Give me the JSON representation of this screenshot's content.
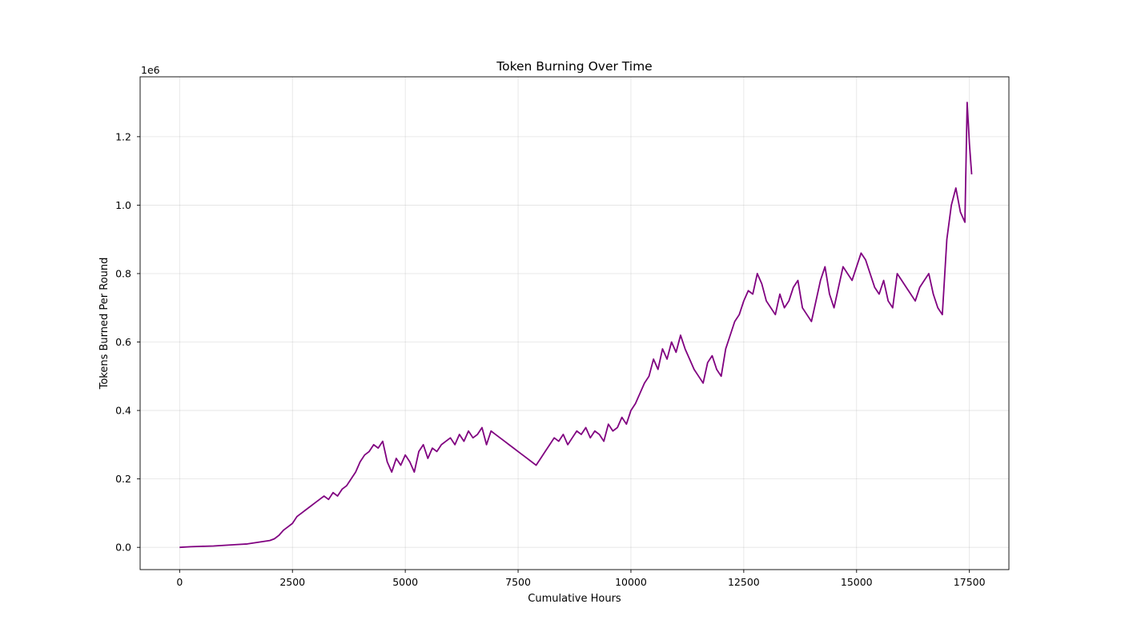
{
  "chart_data": {
    "type": "line",
    "title": "Token Burning Over Time",
    "xlabel": "Cumulative Hours",
    "ylabel": "Tokens Burned Per Round",
    "y_offset_label": "1e6",
    "xlim": [
      -875,
      18375
    ],
    "ylim": [
      -0.065,
      1.375
    ],
    "x_ticks": [
      0,
      2500,
      5000,
      7500,
      10000,
      12500,
      15000,
      17500
    ],
    "x_tick_labels": [
      "0",
      "2500",
      "5000",
      "7500",
      "10000",
      "12500",
      "15000",
      "17500"
    ],
    "y_ticks": [
      0.0,
      0.2,
      0.4,
      0.6,
      0.8,
      1.0,
      1.2
    ],
    "y_tick_labels": [
      "0.0",
      "0.2",
      "0.4",
      "0.6",
      "0.8",
      "1.0",
      "1.2"
    ],
    "grid": true,
    "color": "#800080",
    "series": [
      {
        "x": [
          0,
          250,
          500,
          750,
          1000,
          1250,
          1500,
          1750,
          2000,
          2100,
          2200,
          2300,
          2400,
          2500,
          2600,
          2700,
          2800,
          2900,
          3000,
          3100,
          3200,
          3300,
          3400,
          3500,
          3600,
          3700,
          3800,
          3900,
          4000,
          4100,
          4200,
          4300,
          4400,
          4500,
          4600,
          4700,
          4800,
          4900,
          5000,
          5100,
          5200,
          5300,
          5400,
          5500,
          5600,
          5700,
          5800,
          5900,
          6000,
          6100,
          6200,
          6300,
          6400,
          6500,
          6600,
          6700,
          6800,
          6900,
          7000,
          7100,
          7200,
          7300,
          7400,
          7500,
          7600,
          7700,
          7800,
          7900,
          8000,
          8100,
          8200,
          8300,
          8400,
          8500,
          8600,
          8700,
          8800,
          8900,
          9000,
          9100,
          9200,
          9300,
          9400,
          9500,
          9600,
          9700,
          9800,
          9900,
          10000,
          10100,
          10200,
          10300,
          10400,
          10500,
          10600,
          10700,
          10800,
          10900,
          11000,
          11100,
          11200,
          11300,
          11400,
          11500,
          11600,
          11700,
          11800,
          11900,
          12000,
          12100,
          12200,
          12300,
          12400,
          12500,
          12600,
          12700,
          12800,
          12900,
          13000,
          13100,
          13200,
          13300,
          13400,
          13500,
          13600,
          13700,
          13800,
          13900,
          14000,
          14100,
          14200,
          14300,
          14400,
          14500,
          14600,
          14700,
          14800,
          14900,
          15000,
          15100,
          15200,
          15300,
          15400,
          15500,
          15600,
          15700,
          15800,
          15900,
          16000,
          16100,
          16200,
          16300,
          16400,
          16500,
          16600,
          16700,
          16800,
          16900,
          17000,
          17100,
          17200,
          17300,
          17400,
          17450,
          17500,
          17550
        ],
        "y": [
          0.0,
          0.002,
          0.003,
          0.004,
          0.006,
          0.008,
          0.01,
          0.015,
          0.02,
          0.025,
          0.035,
          0.05,
          0.06,
          0.07,
          0.09,
          0.1,
          0.11,
          0.12,
          0.13,
          0.14,
          0.15,
          0.14,
          0.16,
          0.15,
          0.17,
          0.18,
          0.2,
          0.22,
          0.25,
          0.27,
          0.28,
          0.3,
          0.29,
          0.31,
          0.25,
          0.22,
          0.26,
          0.24,
          0.27,
          0.25,
          0.22,
          0.28,
          0.3,
          0.26,
          0.29,
          0.28,
          0.3,
          0.31,
          0.32,
          0.3,
          0.33,
          0.31,
          0.34,
          0.32,
          0.33,
          0.35,
          0.3,
          0.34,
          0.33,
          0.32,
          0.31,
          0.3,
          0.29,
          0.28,
          0.27,
          0.26,
          0.25,
          0.24,
          0.26,
          0.28,
          0.3,
          0.32,
          0.31,
          0.33,
          0.3,
          0.32,
          0.34,
          0.33,
          0.35,
          0.32,
          0.34,
          0.33,
          0.31,
          0.36,
          0.34,
          0.35,
          0.38,
          0.36,
          0.4,
          0.42,
          0.45,
          0.48,
          0.5,
          0.55,
          0.52,
          0.58,
          0.55,
          0.6,
          0.57,
          0.62,
          0.58,
          0.55,
          0.52,
          0.5,
          0.48,
          0.54,
          0.56,
          0.52,
          0.5,
          0.58,
          0.62,
          0.66,
          0.68,
          0.72,
          0.75,
          0.74,
          0.8,
          0.77,
          0.72,
          0.7,
          0.68,
          0.74,
          0.7,
          0.72,
          0.76,
          0.78,
          0.7,
          0.68,
          0.66,
          0.72,
          0.78,
          0.82,
          0.74,
          0.7,
          0.76,
          0.82,
          0.8,
          0.78,
          0.82,
          0.86,
          0.84,
          0.8,
          0.76,
          0.74,
          0.78,
          0.72,
          0.7,
          0.8,
          0.78,
          0.76,
          0.74,
          0.72,
          0.76,
          0.78,
          0.8,
          0.74,
          0.7,
          0.68,
          0.9,
          1.0,
          1.05,
          0.98,
          0.95,
          1.3,
          1.18,
          1.09
        ]
      }
    ]
  }
}
